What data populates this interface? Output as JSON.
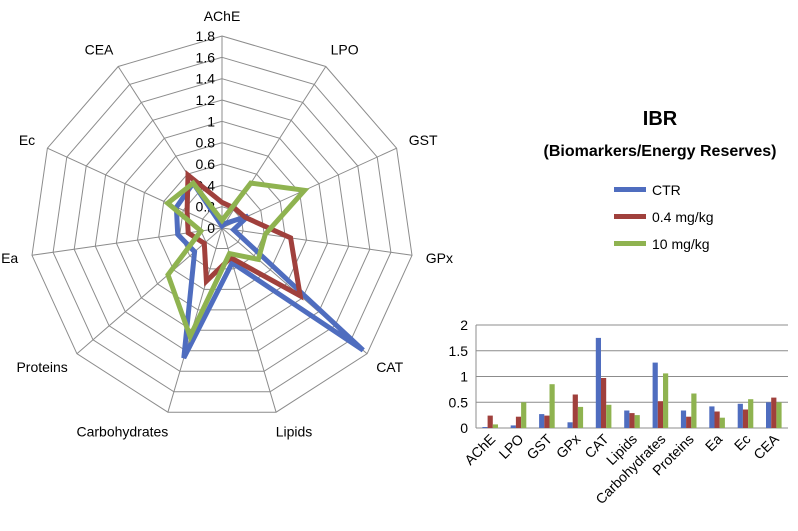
{
  "chart_data": [
    {
      "type": "radar",
      "categories": [
        "AChE",
        "LPO",
        "GST",
        "GPx",
        "CAT",
        "Lipids",
        "Carbohydrates",
        "Proteins",
        "Ea",
        "Ec",
        "CEA"
      ],
      "rlim": [
        0,
        1.8
      ],
      "ticks": [
        "0",
        "0.2",
        "0.4",
        "0.6",
        "0.8",
        "1",
        "1.2",
        "1.4",
        "1.6",
        "1.8"
      ],
      "series": [
        {
          "name": "CTR",
          "color": "#4f6dbf",
          "values": [
            0.02,
            0.05,
            0.27,
            0.11,
            1.75,
            0.34,
            1.27,
            0.34,
            0.42,
            0.47,
            0.5
          ]
        },
        {
          "name": "0.4 mg/kg",
          "color": "#a0403c",
          "values": [
            0.24,
            0.22,
            0.24,
            0.65,
            0.97,
            0.29,
            0.52,
            0.22,
            0.32,
            0.36,
            0.59
          ]
        },
        {
          "name": "10 mg/kg",
          "color": "#8fb350",
          "values": [
            0.07,
            0.5,
            0.85,
            0.41,
            0.45,
            0.25,
            1.06,
            0.67,
            0.2,
            0.56,
            0.5
          ]
        }
      ]
    },
    {
      "type": "bar",
      "categories": [
        "AChE",
        "LPO",
        "GST",
        "GPx",
        "CAT",
        "Lipids",
        "Carbohydrates",
        "Proteins",
        "Ea",
        "Ec",
        "CEA"
      ],
      "ylim": [
        0,
        2
      ],
      "yticks": [
        "0",
        "0.5",
        "1",
        "1.5",
        "2"
      ],
      "series_ref": "same as radar"
    }
  ],
  "title": "IBR",
  "subtitle": "(Biomarkers/Energy Reserves)",
  "legend": [
    {
      "label": "CTR",
      "color": "#4f6dbf"
    },
    {
      "label": "0.4 mg/kg",
      "color": "#a0403c"
    },
    {
      "label": "10 mg/kg",
      "color": "#8fb350"
    }
  ]
}
